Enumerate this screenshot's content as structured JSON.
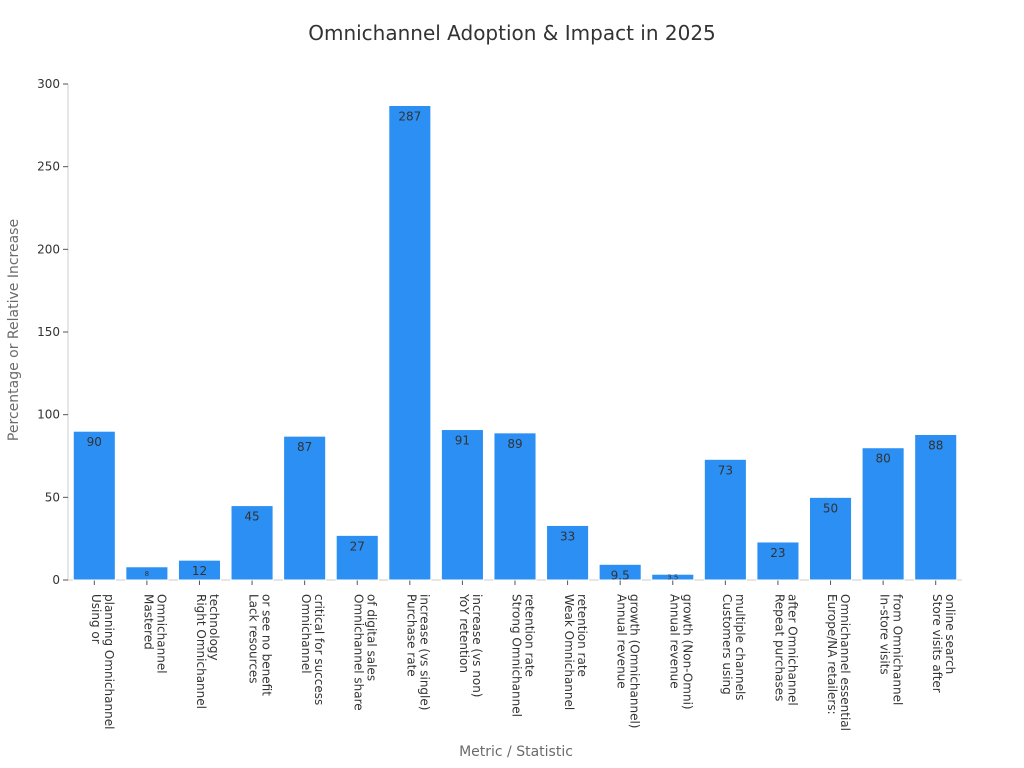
{
  "chart_data": {
    "type": "bar",
    "title": "Omnichannel Adoption & Impact in 2025",
    "xlabel": "Metric / Statistic",
    "ylabel": "Percentage or Relative Increase",
    "ylim": [
      0,
      300
    ],
    "yticks": [
      0,
      50,
      100,
      150,
      200,
      250,
      300
    ],
    "grid": false,
    "bar_color": "#2b8ff3",
    "categories": [
      [
        "Using or",
        "planning Omnichannel"
      ],
      [
        "Mastered",
        "Omnichannel"
      ],
      [
        "Right Omnichannel",
        "technology"
      ],
      [
        "Lack resources",
        "or see no benefit"
      ],
      [
        "Omnichannel",
        "critical for success"
      ],
      [
        "Omnichannel share",
        "of digital sales"
      ],
      [
        "Purchase rate",
        "increase (vs single)"
      ],
      [
        "YoY retention",
        "increase (vs non)"
      ],
      [
        "Strong Omnichannel",
        "retention rate"
      ],
      [
        "Weak Omnichannel",
        "retention rate"
      ],
      [
        "Annual revenue",
        "growth (Omnichannel)"
      ],
      [
        "Annual revenue",
        "growth (Non-Omni)"
      ],
      [
        "Customers using",
        "multiple channels"
      ],
      [
        "Repeat purchases",
        "after Omnichannel"
      ],
      [
        "Europe/NA retailers:",
        "Omnichannel essential"
      ],
      [
        "In-store visits",
        "from Omnichannel"
      ],
      [
        "Store visits after",
        "online search"
      ]
    ],
    "values": [
      90,
      8,
      12,
      45,
      87,
      27,
      287,
      91,
      89,
      33,
      9.5,
      3.5,
      73,
      23,
      50,
      80,
      88
    ],
    "value_labels": [
      "90",
      "8",
      "12",
      "45",
      "87",
      "27",
      "287",
      "91",
      "89",
      "33",
      "9.5",
      "3.5",
      "73",
      "23",
      "50",
      "80",
      "88"
    ]
  }
}
